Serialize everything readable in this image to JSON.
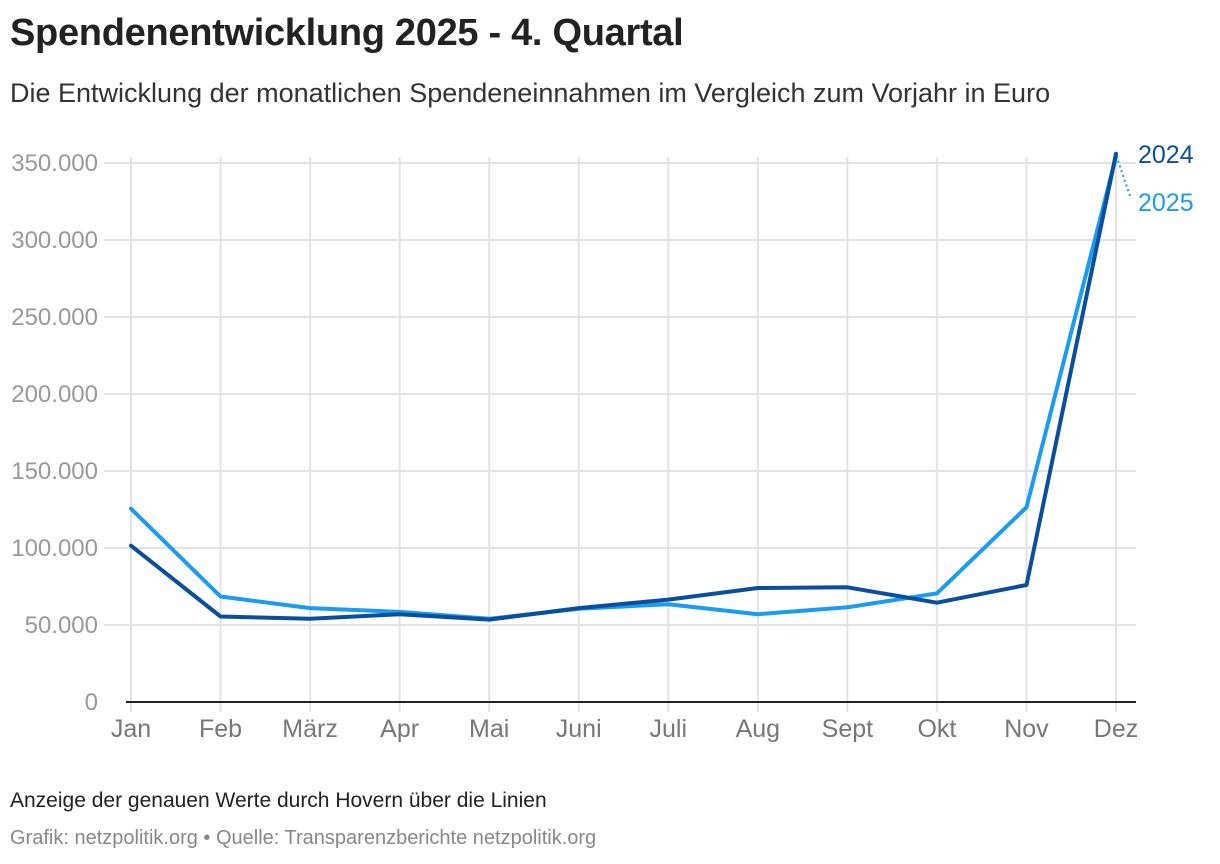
{
  "header": {
    "title": "Spendenentwicklung 2025 - 4. Quartal",
    "subtitle": "Die Entwicklung der monatlichen Spendeneinnahmen im Vergleich zum Vorjahr in Euro"
  },
  "footer": {
    "note": "Anzeige der genauen Werte durch Hovern über die Linien",
    "source": "Grafik: netzpolitik.org • Quelle: Transparenzberichte netzpolitik.org"
  },
  "colors": {
    "series_2024": "#0a4f9e",
    "series_2025": "#1a9cf0",
    "grid": "#e3e3e3",
    "axis": "#222222",
    "tick_label": "#999999",
    "x_label": "#777777"
  },
  "chart_data": {
    "type": "line",
    "categories": [
      "Jan",
      "Feb",
      "März",
      "Apr",
      "Mai",
      "Juni",
      "Juli",
      "Aug",
      "Sept",
      "Okt",
      "Nov",
      "Dez"
    ],
    "ylim": [
      0,
      350000
    ],
    "yticks": [
      0,
      50000,
      100000,
      150000,
      200000,
      250000,
      300000,
      350000
    ],
    "ytick_labels": [
      "0",
      "50.000",
      "100.000",
      "150.000",
      "200.000",
      "250.000",
      "300.000",
      "350.000"
    ],
    "grid": true,
    "legend": "direct labels at line ends (right)",
    "series": [
      {
        "name": "2024",
        "color": "#0a4f9e",
        "values": [
          101500,
          55500,
          54000,
          57000,
          53500,
          61000,
          66500,
          74000,
          74500,
          64500,
          76000,
          356000
        ]
      },
      {
        "name": "2025",
        "color": "#1a9cf0",
        "values": [
          125500,
          68500,
          61000,
          58500,
          54000,
          60500,
          63500,
          57000,
          61500,
          70500,
          126500,
          354000
        ]
      }
    ],
    "title": "Spendenentwicklung 2025 - 4. Quartal",
    "subtitle": "Die Entwicklung der monatlichen Spendeneinnahmen im Vergleich zum Vorjahr in Euro",
    "xlabel": "",
    "ylabel": ""
  }
}
